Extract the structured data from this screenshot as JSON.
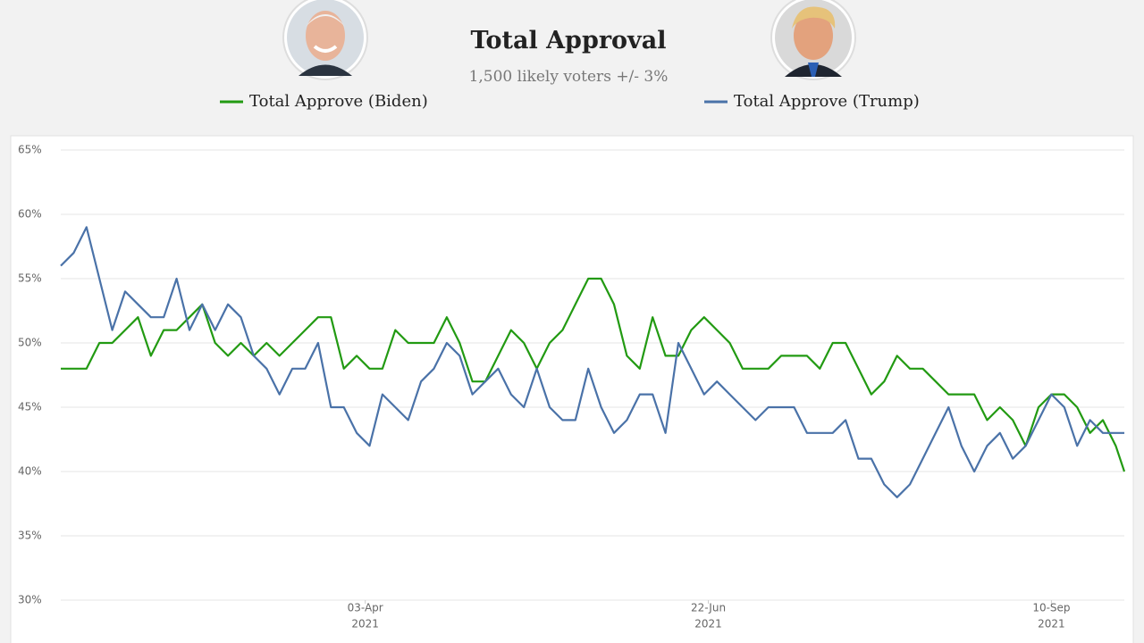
{
  "chart_data": {
    "type": "line",
    "title": "Total Approval",
    "subtitle": "1,500 likely voters +/- 3%",
    "x": [
      "2021-01-22",
      "2021-01-25",
      "2021-01-28",
      "2021-01-31",
      "2021-02-03",
      "2021-02-06",
      "2021-02-09",
      "2021-02-12",
      "2021-02-15",
      "2021-02-18",
      "2021-02-21",
      "2021-02-24",
      "2021-02-27",
      "2021-03-02",
      "2021-03-05",
      "2021-03-08",
      "2021-03-11",
      "2021-03-14",
      "2021-03-17",
      "2021-03-20",
      "2021-03-23",
      "2021-03-26",
      "2021-03-29",
      "2021-04-01",
      "2021-04-04",
      "2021-04-07",
      "2021-04-10",
      "2021-04-13",
      "2021-04-16",
      "2021-04-19",
      "2021-04-22",
      "2021-04-25",
      "2021-04-28",
      "2021-05-01",
      "2021-05-04",
      "2021-05-07",
      "2021-05-10",
      "2021-05-13",
      "2021-05-16",
      "2021-05-19",
      "2021-05-22",
      "2021-05-25",
      "2021-05-28",
      "2021-05-31",
      "2021-06-03",
      "2021-06-06",
      "2021-06-09",
      "2021-06-12",
      "2021-06-15",
      "2021-06-18",
      "2021-06-21",
      "2021-06-24",
      "2021-06-27",
      "2021-06-30",
      "2021-07-03",
      "2021-07-06",
      "2021-07-09",
      "2021-07-12",
      "2021-07-15",
      "2021-07-18",
      "2021-07-21",
      "2021-07-24",
      "2021-07-27",
      "2021-07-30",
      "2021-08-02",
      "2021-08-05",
      "2021-08-08",
      "2021-08-11",
      "2021-08-14",
      "2021-08-17",
      "2021-08-20",
      "2021-08-23",
      "2021-08-26",
      "2021-08-29",
      "2021-09-01",
      "2021-09-04",
      "2021-09-07",
      "2021-09-10",
      "2021-09-13",
      "2021-09-16",
      "2021-09-19",
      "2021-09-22",
      "2021-09-25",
      "2021-09-27"
    ],
    "series": [
      {
        "name": "Total Approve (Biden)",
        "color": "#229a12",
        "values": [
          48,
          48,
          48,
          50,
          50,
          51,
          52,
          49,
          51,
          51,
          52,
          53,
          50,
          49,
          50,
          49,
          50,
          49,
          50,
          51,
          52,
          52,
          48,
          49,
          48,
          48,
          51,
          50,
          50,
          50,
          52,
          50,
          47,
          47,
          49,
          51,
          50,
          48,
          50,
          51,
          53,
          55,
          55,
          53,
          49,
          48,
          52,
          49,
          49,
          51,
          52,
          51,
          50,
          48,
          48,
          48,
          49,
          49,
          49,
          48,
          50,
          50,
          48,
          46,
          47,
          49,
          48,
          48,
          47,
          46,
          46,
          46,
          44,
          45,
          44,
          42,
          45,
          46,
          46,
          45,
          43,
          44,
          42,
          40
        ]
      },
      {
        "name": "Total Approve (Trump)",
        "color": "#4a72a8",
        "values": [
          56,
          57,
          59,
          55,
          51,
          54,
          53,
          52,
          52,
          55,
          51,
          53,
          51,
          53,
          52,
          49,
          48,
          46,
          48,
          48,
          50,
          45,
          45,
          43,
          42,
          46,
          45,
          44,
          47,
          48,
          50,
          49,
          46,
          47,
          48,
          46,
          45,
          48,
          45,
          44,
          44,
          48,
          45,
          43,
          44,
          46,
          46,
          43,
          50,
          48,
          46,
          47,
          46,
          45,
          44,
          45,
          45,
          45,
          43,
          43,
          43,
          44,
          41,
          41,
          39,
          38,
          39,
          41,
          43,
          45,
          42,
          40,
          42,
          43,
          41,
          42,
          44,
          46,
          45,
          42,
          44,
          43,
          43,
          43
        ]
      }
    ],
    "xlim": [
      "2021-01-22",
      "2021-09-27"
    ],
    "xticks": [
      {
        "value": "2021-04-03",
        "label": "03-Apr",
        "year": "2021"
      },
      {
        "value": "2021-06-22",
        "label": "22-Jun",
        "year": "2021"
      },
      {
        "value": "2021-09-10",
        "label": "10-Sep",
        "year": "2021"
      }
    ],
    "ylim": [
      30,
      65
    ],
    "yticks": [
      {
        "value": 30,
        "label": "30%"
      },
      {
        "value": 35,
        "label": "35%"
      },
      {
        "value": 40,
        "label": "40%"
      },
      {
        "value": 45,
        "label": "45%"
      },
      {
        "value": 50,
        "label": "50%"
      },
      {
        "value": 55,
        "label": "55%"
      },
      {
        "value": 60,
        "label": "60%"
      },
      {
        "value": 65,
        "label": "65%"
      }
    ],
    "grid": true
  }
}
